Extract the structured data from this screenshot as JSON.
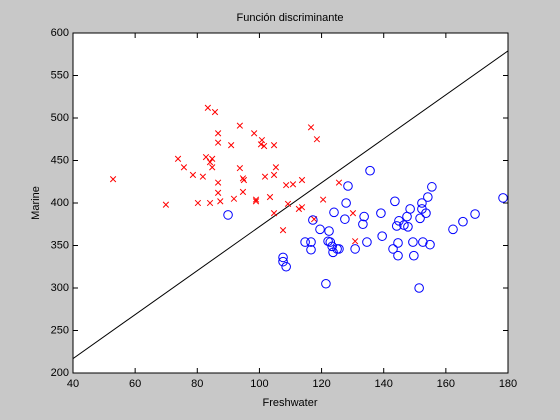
{
  "chart_data": {
    "type": "scatter",
    "title": "Función discriminante",
    "xlabel": "Freshwater",
    "ylabel": "Marine",
    "xlim": [
      40,
      180
    ],
    "ylim": [
      200,
      600
    ],
    "xticks": [
      40,
      60,
      80,
      100,
      120,
      140,
      160,
      180
    ],
    "yticks": [
      200,
      250,
      300,
      350,
      400,
      450,
      500,
      550,
      600
    ],
    "grid": false,
    "series": [
      {
        "color": "#ff0000",
        "marker": "x",
        "x": [
          52.9,
          69.9,
          73.8,
          75.7,
          78.6,
          81.8,
          80.2,
          82.8,
          84.1,
          83.4,
          85.7,
          84.8,
          84.8,
          86.7,
          86.7,
          84.1,
          87.4,
          86.7,
          86.7,
          90.9,
          91.8,
          93.7,
          93.7,
          94.7,
          94.7,
          95.0,
          98.3,
          98.9,
          98.9,
          100.8,
          100.5,
          101.5,
          101.8,
          103.4,
          104.7,
          105.3,
          104.7,
          104.7,
          107.6,
          108.6,
          109.2,
          110.8,
          112.7,
          113.7,
          113.7,
          116.6,
          118.5,
          117.6,
          120.5,
          125.6,
          130.1,
          130.8
        ],
        "values": [
          428,
          398,
          452,
          442,
          433,
          431,
          400,
          454,
          448,
          512,
          507,
          452,
          442,
          482,
          471,
          400,
          402,
          424,
          412,
          468,
          405,
          491,
          441,
          429,
          413,
          427,
          482,
          402,
          404,
          474,
          469,
          467,
          431,
          407,
          468,
          442,
          433,
          388,
          368,
          421,
          399,
          422,
          393,
          427,
          395,
          489,
          475,
          381,
          404,
          424,
          388,
          355
        ]
      },
      {
        "color": "#0000ff",
        "marker": "o",
        "x": [
          89.9,
          107.6,
          107.6,
          108.6,
          117.2,
          119.5,
          114.7,
          116.6,
          116.6,
          122.1,
          122.8,
          121.4,
          122.4,
          124.0,
          123.4,
          123.7,
          125.0,
          125.6,
          127.5,
          127.9,
          128.5,
          130.8,
          133.3,
          133.7,
          134.6,
          135.6,
          139.1,
          139.5,
          143.6,
          143.0,
          144.2,
          144.6,
          144.9,
          144.6,
          146.5,
          147.5,
          147.8,
          148.5,
          149.4,
          149.7,
          151.4,
          151.7,
          152.3,
          152.3,
          152.6,
          153.6,
          154.2,
          154.9,
          155.5,
          162.3,
          165.5,
          169.4,
          178.4
        ],
        "values": [
          386,
          336,
          331,
          325,
          380,
          369,
          354,
          354,
          345,
          355,
          354,
          305,
          367,
          389,
          349,
          342,
          346,
          346,
          381,
          400,
          420,
          346,
          375,
          384,
          354,
          438,
          388,
          361,
          402,
          346,
          373,
          353,
          379,
          338,
          374,
          384,
          372,
          393,
          354,
          338,
          300,
          382,
          400,
          393,
          354,
          388,
          407,
          351,
          419,
          369,
          378,
          387,
          406
        ]
      }
    ],
    "discriminant": {
      "color": "#000000",
      "x": [
        40,
        180
      ],
      "values": [
        217,
        579
      ]
    }
  }
}
